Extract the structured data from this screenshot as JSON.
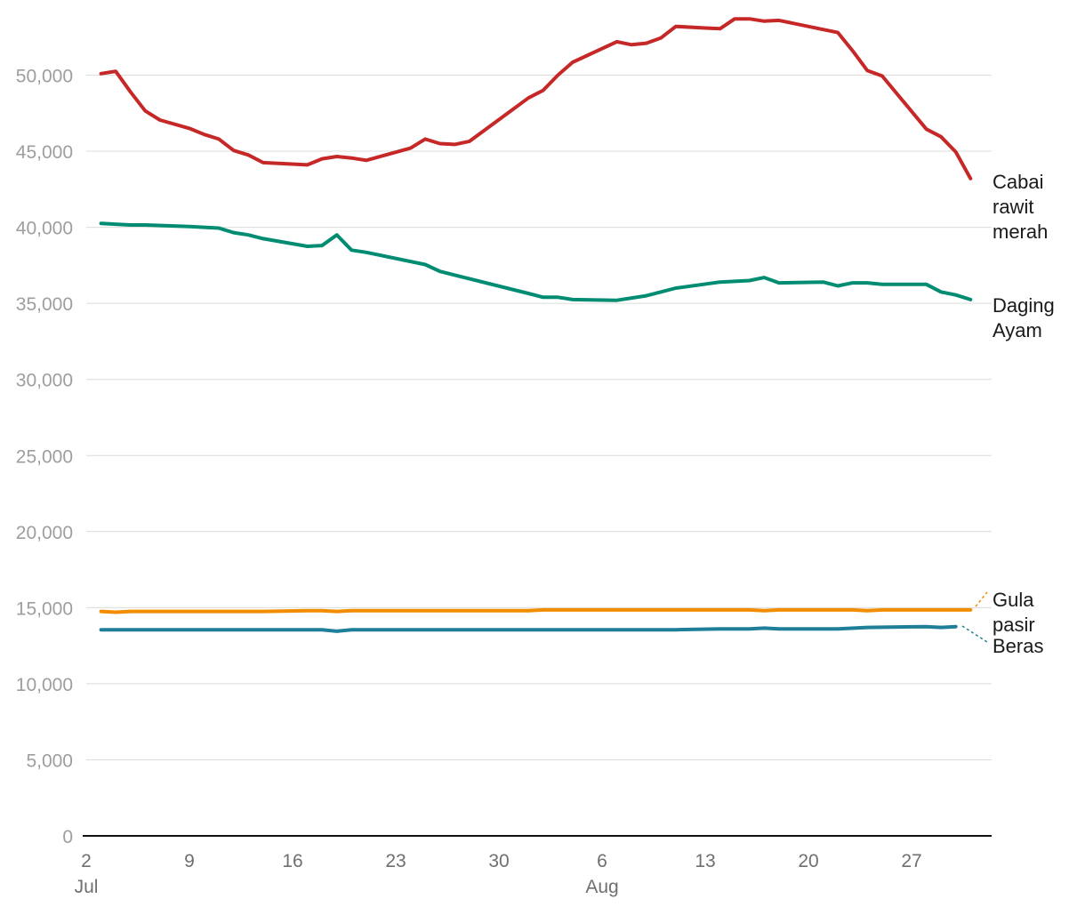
{
  "chart_data": {
    "type": "line",
    "title": "",
    "xlabel": "",
    "ylabel": "",
    "x_range": [
      "2024-07-02",
      "2024-08-31"
    ],
    "ylim": [
      0,
      55000
    ],
    "y_ticks": [
      0,
      5000,
      10000,
      15000,
      20000,
      25000,
      30000,
      35000,
      40000,
      45000,
      50000
    ],
    "y_tick_labels": [
      "0",
      "5,000",
      "10,000",
      "15,000",
      "20,000",
      "25,000",
      "30,000",
      "35,000",
      "40,000",
      "45,000",
      "50,000"
    ],
    "x_ticks": [
      {
        "date": "2024-07-02",
        "label": "2",
        "sublabel": "Jul"
      },
      {
        "date": "2024-07-09",
        "label": "9",
        "sublabel": ""
      },
      {
        "date": "2024-07-16",
        "label": "16",
        "sublabel": ""
      },
      {
        "date": "2024-07-23",
        "label": "23",
        "sublabel": ""
      },
      {
        "date": "2024-07-30",
        "label": "30",
        "sublabel": ""
      },
      {
        "date": "2024-08-06",
        "label": "6",
        "sublabel": "Aug"
      },
      {
        "date": "2024-08-13",
        "label": "13",
        "sublabel": ""
      },
      {
        "date": "2024-08-20",
        "label": "20",
        "sublabel": ""
      },
      {
        "date": "2024-08-27",
        "label": "27",
        "sublabel": ""
      }
    ],
    "grid": true,
    "legend": "direct labels at right end of lines",
    "series": [
      {
        "name": "Cabai rawit merah",
        "label_lines": [
          "Cabai",
          "rawit",
          "merah"
        ],
        "color": "#c62828",
        "points": [
          [
            "2024-07-03",
            50100
          ],
          [
            "2024-07-04",
            50250
          ],
          [
            "2024-07-05",
            48900
          ],
          [
            "2024-07-06",
            47650
          ],
          [
            "2024-07-07",
            47050
          ],
          [
            "2024-07-09",
            46500
          ],
          [
            "2024-07-10",
            46100
          ],
          [
            "2024-07-11",
            45800
          ],
          [
            "2024-07-12",
            45050
          ],
          [
            "2024-07-13",
            44750
          ],
          [
            "2024-07-14",
            44250
          ],
          [
            "2024-07-17",
            44100
          ],
          [
            "2024-07-18",
            44500
          ],
          [
            "2024-07-19",
            44650
          ],
          [
            "2024-07-20",
            44550
          ],
          [
            "2024-07-21",
            44400
          ],
          [
            "2024-07-24",
            45200
          ],
          [
            "2024-07-25",
            45800
          ],
          [
            "2024-07-26",
            45500
          ],
          [
            "2024-07-27",
            45450
          ],
          [
            "2024-07-28",
            45650
          ],
          [
            "2024-08-01",
            48500
          ],
          [
            "2024-08-02",
            49000
          ],
          [
            "2024-08-03",
            50000
          ],
          [
            "2024-08-04",
            50850
          ],
          [
            "2024-08-07",
            52200
          ],
          [
            "2024-08-08",
            52000
          ],
          [
            "2024-08-09",
            52100
          ],
          [
            "2024-08-10",
            52450
          ],
          [
            "2024-08-11",
            53200
          ],
          [
            "2024-08-13",
            53100
          ],
          [
            "2024-08-14",
            53050
          ],
          [
            "2024-08-15",
            53700
          ],
          [
            "2024-08-16",
            53700
          ],
          [
            "2024-08-17",
            53550
          ],
          [
            "2024-08-18",
            53600
          ],
          [
            "2024-08-21",
            53000
          ],
          [
            "2024-08-22",
            52800
          ],
          [
            "2024-08-23",
            51600
          ],
          [
            "2024-08-24",
            50300
          ],
          [
            "2024-08-25",
            49950
          ],
          [
            "2024-08-28",
            46450
          ],
          [
            "2024-08-29",
            45950
          ],
          [
            "2024-08-30",
            44950
          ],
          [
            "2024-08-31",
            43200
          ]
        ]
      },
      {
        "name": "Daging Ayam",
        "label_lines": [
          "Daging",
          "Ayam"
        ],
        "color": "#008c72",
        "points": [
          [
            "2024-07-03",
            40250
          ],
          [
            "2024-07-05",
            40150
          ],
          [
            "2024-07-06",
            40150
          ],
          [
            "2024-07-09",
            40050
          ],
          [
            "2024-07-11",
            39950
          ],
          [
            "2024-07-12",
            39650
          ],
          [
            "2024-07-13",
            39500
          ],
          [
            "2024-07-14",
            39250
          ],
          [
            "2024-07-17",
            38750
          ],
          [
            "2024-07-18",
            38800
          ],
          [
            "2024-07-19",
            39500
          ],
          [
            "2024-07-20",
            38500
          ],
          [
            "2024-07-21",
            38350
          ],
          [
            "2024-07-25",
            37550
          ],
          [
            "2024-07-26",
            37100
          ],
          [
            "2024-08-01",
            35650
          ],
          [
            "2024-08-02",
            35400
          ],
          [
            "2024-08-03",
            35400
          ],
          [
            "2024-08-04",
            35250
          ],
          [
            "2024-08-07",
            35200
          ],
          [
            "2024-08-09",
            35500
          ],
          [
            "2024-08-11",
            36000
          ],
          [
            "2024-08-14",
            36400
          ],
          [
            "2024-08-16",
            36500
          ],
          [
            "2024-08-17",
            36700
          ],
          [
            "2024-08-18",
            36350
          ],
          [
            "2024-08-21",
            36400
          ],
          [
            "2024-08-22",
            36150
          ],
          [
            "2024-08-23",
            36350
          ],
          [
            "2024-08-24",
            36350
          ],
          [
            "2024-08-25",
            36250
          ],
          [
            "2024-08-28",
            36250
          ],
          [
            "2024-08-29",
            35750
          ],
          [
            "2024-08-30",
            35550
          ],
          [
            "2024-08-31",
            35250
          ]
        ]
      },
      {
        "name": "Gula pasir",
        "label_lines": [
          "Gula",
          "pasir"
        ],
        "color": "#f28c00",
        "points": [
          [
            "2024-07-03",
            14750
          ],
          [
            "2024-07-04",
            14700
          ],
          [
            "2024-07-05",
            14750
          ],
          [
            "2024-07-14",
            14750
          ],
          [
            "2024-07-17",
            14800
          ],
          [
            "2024-07-18",
            14800
          ],
          [
            "2024-07-19",
            14750
          ],
          [
            "2024-07-20",
            14800
          ],
          [
            "2024-08-01",
            14800
          ],
          [
            "2024-08-02",
            14850
          ],
          [
            "2024-08-16",
            14850
          ],
          [
            "2024-08-17",
            14800
          ],
          [
            "2024-08-18",
            14850
          ],
          [
            "2024-08-23",
            14850
          ],
          [
            "2024-08-24",
            14800
          ],
          [
            "2024-08-25",
            14850
          ],
          [
            "2024-08-31",
            14850
          ]
        ]
      },
      {
        "name": "Beras",
        "label_lines": [
          "Beras"
        ],
        "color": "#1f7f99",
        "points": [
          [
            "2024-07-03",
            13550
          ],
          [
            "2024-07-18",
            13550
          ],
          [
            "2024-07-19",
            13450
          ],
          [
            "2024-07-20",
            13550
          ],
          [
            "2024-08-11",
            13550
          ],
          [
            "2024-08-14",
            13600
          ],
          [
            "2024-08-16",
            13600
          ],
          [
            "2024-08-17",
            13650
          ],
          [
            "2024-08-18",
            13600
          ],
          [
            "2024-08-22",
            13600
          ],
          [
            "2024-08-24",
            13700
          ],
          [
            "2024-08-28",
            13750
          ],
          [
            "2024-08-29",
            13700
          ],
          [
            "2024-08-30",
            13750
          ]
        ]
      }
    ]
  }
}
